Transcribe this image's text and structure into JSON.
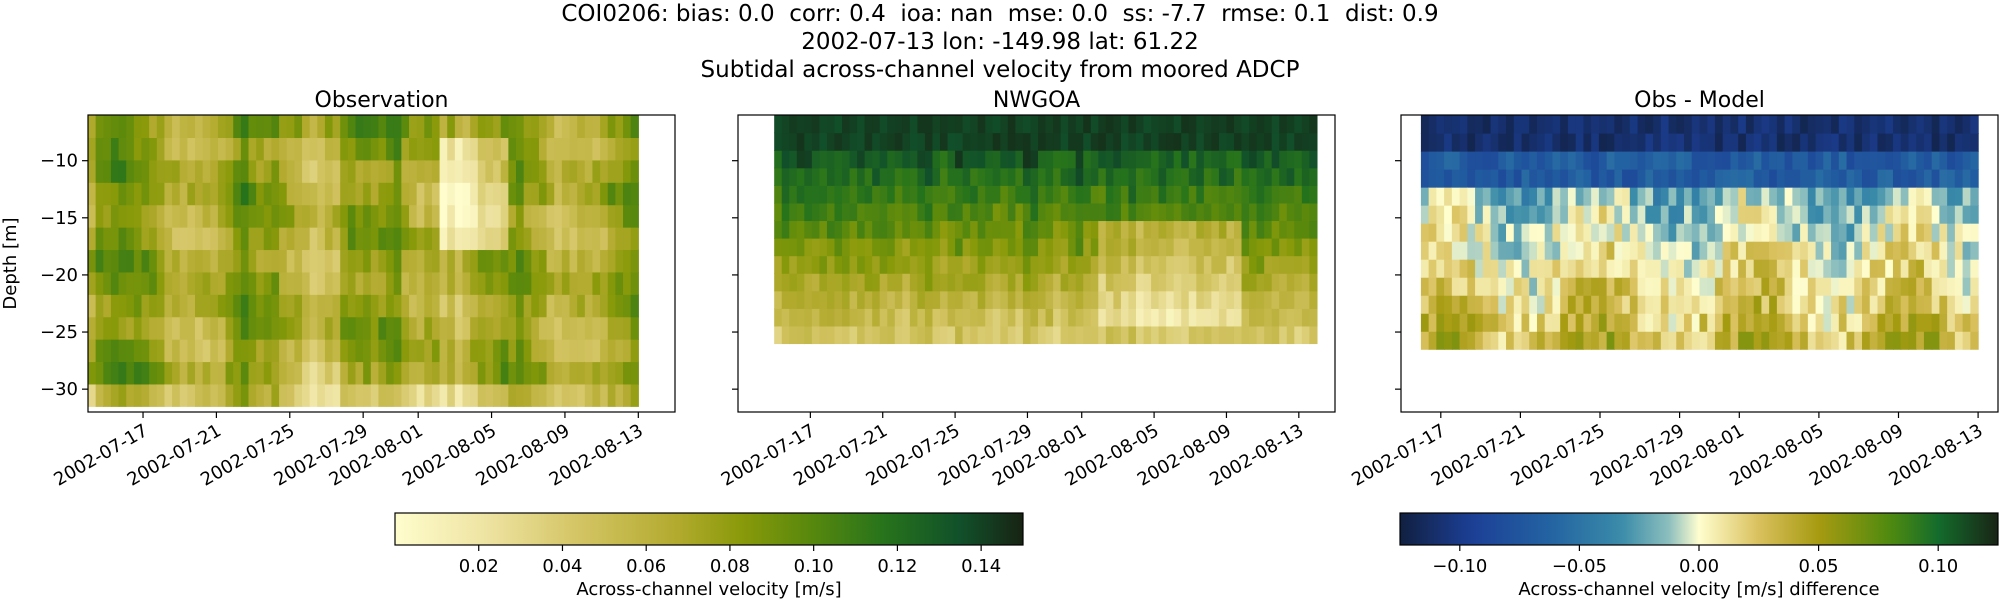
{
  "figure": {
    "title_lines": [
      "COI0206: bias: 0.0  corr: 0.4  ioa: nan  mse: 0.0  ss: -7.7  rmse: 0.1  dist: 0.9",
      "2002-07-13 lon: -149.98 lat: 61.22",
      "Subtidal across-channel velocity from moored ADCP"
    ]
  },
  "chart_data": [
    {
      "type": "heatmap",
      "title": "Observation",
      "ylabel": "Depth [m]",
      "xlabel": "",
      "x_ticks": [
        "2002-07-17",
        "2002-07-21",
        "2002-07-25",
        "2002-07-29",
        "2002-08-01",
        "2002-08-05",
        "2002-08-09",
        "2002-08-13"
      ],
      "y_ticks": [
        -10,
        -15,
        -20,
        -25,
        -30
      ],
      "xlim": [
        "2002-07-14",
        "2002-08-15"
      ],
      "ylim": [
        -32,
        -6
      ],
      "data_extent": {
        "x": [
          "2002-07-14",
          "2002-08-13"
        ],
        "y": [
          -31.5,
          -6
        ]
      },
      "colormap": "speed",
      "clim": [
        0.0,
        0.15
      ],
      "hot_spot": {
        "x": [
          "2002-08-02",
          "2002-08-06"
        ],
        "y": [
          -17,
          -8
        ]
      },
      "colorbar": {
        "ticks": [
          "0.02",
          "0.04",
          "0.06",
          "0.08",
          "0.10",
          "0.12",
          "0.14"
        ],
        "label": "Across-channel velocity [m/s]"
      }
    },
    {
      "type": "heatmap",
      "title": "NWGOA",
      "ylabel": "",
      "xlabel": "",
      "x_ticks": [
        "2002-07-17",
        "2002-07-21",
        "2002-07-25",
        "2002-07-29",
        "2002-08-01",
        "2002-08-05",
        "2002-08-09",
        "2002-08-13"
      ],
      "y_ticks": [
        -10,
        -15,
        -20,
        -25,
        -30
      ],
      "xlim": [
        "2002-07-13",
        "2002-08-15"
      ],
      "ylim": [
        -32,
        -6
      ],
      "data_extent": {
        "x": [
          "2002-07-15",
          "2002-08-14"
        ],
        "y": [
          -26,
          -6
        ]
      },
      "colormap": "speed",
      "clim": [
        0.0,
        0.15
      ],
      "weak_region": {
        "x": [
          "2002-08-02",
          "2002-08-10"
        ],
        "y": [
          -25,
          -16
        ]
      }
    },
    {
      "type": "heatmap",
      "title": "Obs - Model",
      "ylabel": "",
      "xlabel": "",
      "x_ticks": [
        "2002-07-17",
        "2002-07-21",
        "2002-07-25",
        "2002-07-29",
        "2002-08-01",
        "2002-08-05",
        "2002-08-09",
        "2002-08-13"
      ],
      "y_ticks": [
        -10,
        -15,
        -20,
        -25,
        -30
      ],
      "xlim": [
        "2002-07-15",
        "2002-08-14"
      ],
      "ylim": [
        -32,
        -6
      ],
      "data_extent": {
        "x": [
          "2002-07-16",
          "2002-08-13"
        ],
        "y": [
          -26.5,
          -6
        ]
      },
      "colormap": "delta",
      "clim": [
        -0.125,
        0.125
      ],
      "colorbar": {
        "ticks": [
          "−0.10",
          "−0.05",
          "0.00",
          "0.05",
          "0.10"
        ],
        "label": "Across-channel velocity [m/s] difference"
      }
    }
  ]
}
